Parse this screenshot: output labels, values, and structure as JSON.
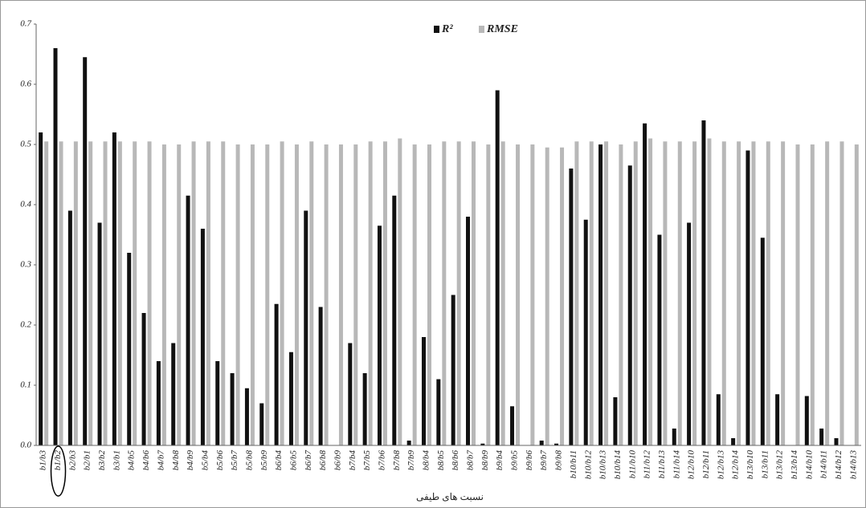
{
  "chart_data": {
    "type": "bar",
    "x_label": "نسبت های طیفی",
    "categories": [
      "b1/b3",
      "b1/b2",
      "b2/b3",
      "b2/b1",
      "b3/b2",
      "b3/b1",
      "b4/b5",
      "b4/b6",
      "b4/b7",
      "b4/b8",
      "b4/b9",
      "b5/b4",
      "b5/b6",
      "b5/b7",
      "b5/b8",
      "b5/b9",
      "b6/b4",
      "b6/b5",
      "b6/b7",
      "b6/b8",
      "b6/b9",
      "b7/b4",
      "b7/b5",
      "b7/b6",
      "b7/b8",
      "b7/b9",
      "b8/b4",
      "b8/b5",
      "b8/b6",
      "b8/b7",
      "b8/b9",
      "b9/b4",
      "b9/b5",
      "b9/b6",
      "b9/b7",
      "b9/b8",
      "b10/b11",
      "b10/b12",
      "b10/b13",
      "b10/b14",
      "b11/b10",
      "b11/b12",
      "b11/b13",
      "b11/b14",
      "b12/b10",
      "b12/b11",
      "b12/b13",
      "b12/b14",
      "b13/b10",
      "b13/b11",
      "b13/b12",
      "b13/b14",
      "b14/b10",
      "b14/b11",
      "b14/b12",
      "b14/b13"
    ],
    "series": [
      {
        "name": "R²",
        "color": "#111111",
        "values": [
          0.52,
          0.66,
          0.39,
          0.645,
          0.37,
          0.52,
          0.32,
          0.22,
          0.14,
          0.17,
          0.415,
          0.36,
          0.14,
          0.12,
          0.095,
          0.07,
          0.235,
          0.155,
          0.39,
          0.23,
          0,
          0.17,
          0.12,
          0.365,
          0.415,
          0.008,
          0.18,
          0.11,
          0.25,
          0.38,
          0.003,
          0.59,
          0.065,
          0,
          0.008,
          0.003,
          0.46,
          0.375,
          0.5,
          0.08,
          0.465,
          0.535,
          0.35,
          0.028,
          0.37,
          0.54,
          0.085,
          0.012,
          0.49,
          0.345,
          0.085,
          0,
          0.082,
          0.028,
          0.012,
          0
        ]
      },
      {
        "name": "RMSE",
        "color": "#b8b8b8",
        "values": [
          0.505,
          0.505,
          0.505,
          0.505,
          0.505,
          0.505,
          0.505,
          0.505,
          0.5,
          0.5,
          0.505,
          0.505,
          0.505,
          0.5,
          0.5,
          0.5,
          0.505,
          0.5,
          0.505,
          0.5,
          0.5,
          0.5,
          0.505,
          0.505,
          0.51,
          0.5,
          0.5,
          0.505,
          0.505,
          0.505,
          0.5,
          0.505,
          0.5,
          0.5,
          0.495,
          0.495,
          0.505,
          0.505,
          0.505,
          0.5,
          0.505,
          0.51,
          0.505,
          0.505,
          0.505,
          0.51,
          0.505,
          0.505,
          0.505,
          0.505,
          0.505,
          0.5,
          0.5,
          0.505,
          0.505,
          0.5
        ]
      }
    ],
    "ylim": [
      0,
      0.7
    ],
    "yticks": [
      {
        "value": 0,
        "label": "0.0"
      },
      0.1,
      0.2,
      0.3,
      0.4,
      0.5,
      0.6,
      0.7
    ],
    "legend": "top"
  }
}
